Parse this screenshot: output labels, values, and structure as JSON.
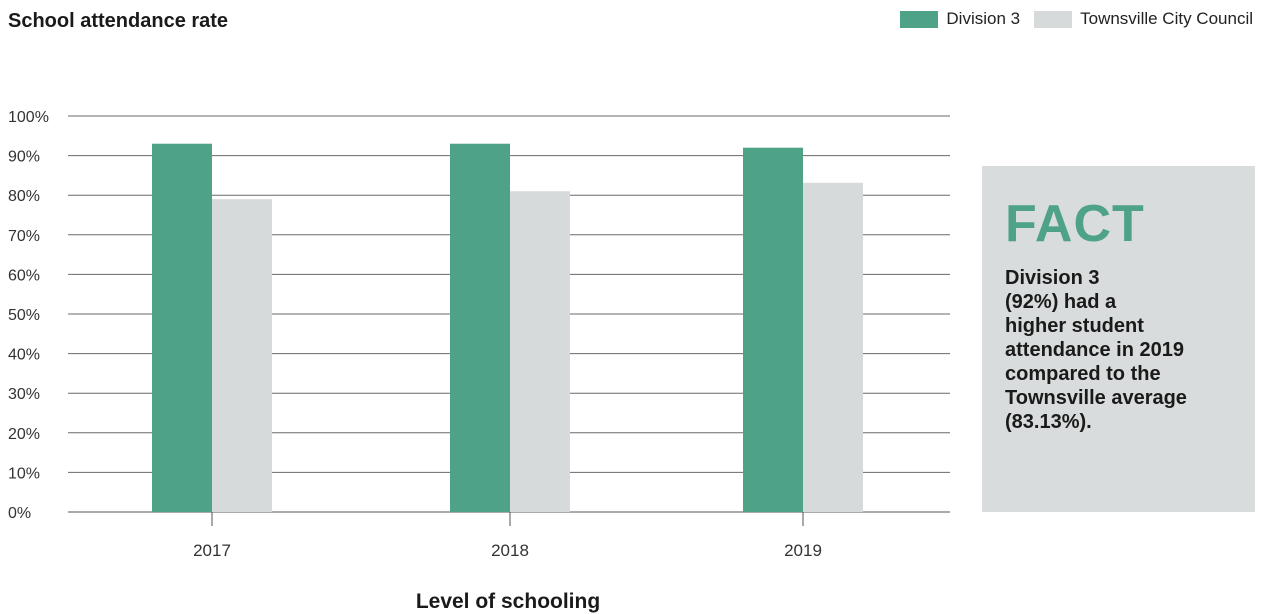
{
  "chart_data": {
    "type": "bar",
    "title": "School attendance rate",
    "xlabel": "Level of schooling",
    "ylabel": "",
    "categories": [
      "2017",
      "2018",
      "2019"
    ],
    "series": [
      {
        "name": "Division 3",
        "color": "#4da287",
        "values": [
          93,
          93,
          92
        ]
      },
      {
        "name": "Townsville City Council",
        "color": "#d7dada",
        "values": [
          79,
          81,
          83.13
        ]
      }
    ],
    "ylim": [
      0,
      100
    ],
    "yticks": [
      "0%",
      "10%",
      "20%",
      "30%",
      "40%",
      "50%",
      "60%",
      "70%",
      "80%",
      "90%",
      "100%"
    ],
    "grid": true,
    "legend_position": "top-right"
  },
  "fact": {
    "heading": "FACT",
    "body": "Division 3\n(92%) had a\nhigher student\nattendance in 2019\ncompared to the\nTownsville average\n(83.13%)."
  }
}
